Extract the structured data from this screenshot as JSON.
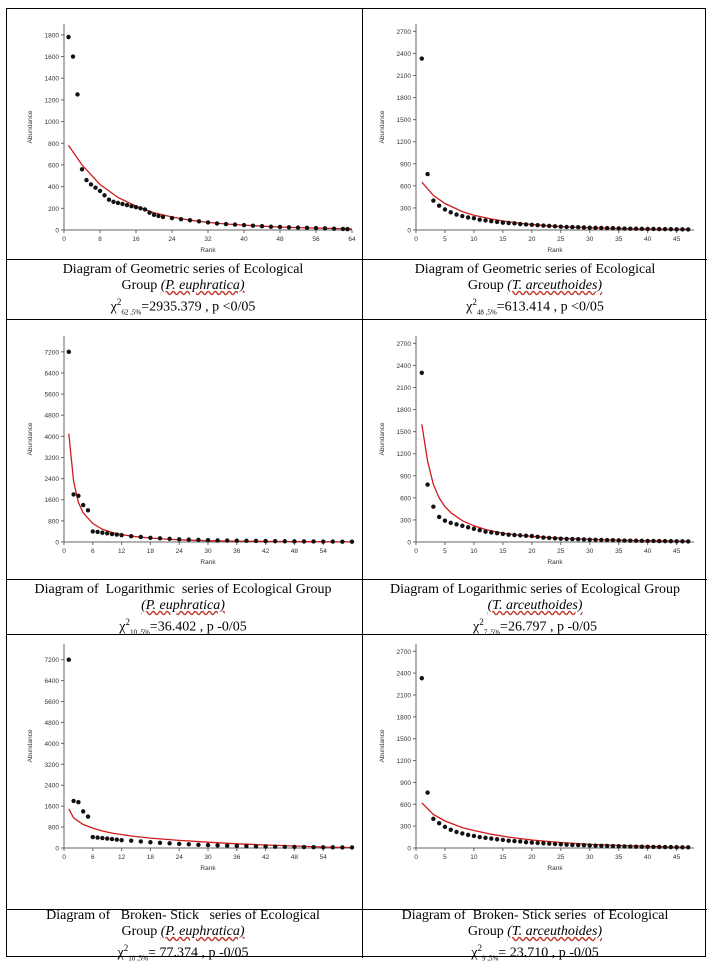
{
  "chart_data": [
    {
      "type": "scatter",
      "title_line1": "Diagram of Geometric series of Ecological",
      "title_line2_pre": "Group",
      "species": "(P. euphratica)",
      "stat_sym": "χ",
      "stat_sup": "2",
      "stat_sub": "62 ,5%",
      "stat_text": "=2935.379 , p <0/05",
      "xlabel": "Rank",
      "ylabel": "Abundance",
      "xticks": [
        0,
        8,
        16,
        24,
        32,
        40,
        48,
        56,
        64
      ],
      "yticks": [
        0,
        200,
        400,
        600,
        800,
        1000,
        1200,
        1400,
        1600,
        1800
      ],
      "xlim": [
        0,
        64
      ],
      "ylim": [
        0,
        1900
      ],
      "observed": {
        "x": [
          1,
          2,
          3,
          4,
          5,
          6,
          7,
          8,
          9,
          10,
          11,
          12,
          13,
          14,
          15,
          16,
          17,
          18,
          19,
          20,
          21,
          22,
          24,
          26,
          28,
          30,
          32,
          34,
          36,
          38,
          40,
          42,
          44,
          46,
          48,
          50,
          52,
          54,
          56,
          58,
          60,
          62,
          63
        ],
        "y": [
          1780,
          1600,
          1250,
          560,
          460,
          420,
          390,
          360,
          320,
          280,
          260,
          250,
          240,
          230,
          220,
          210,
          200,
          190,
          160,
          140,
          130,
          120,
          110,
          100,
          90,
          80,
          70,
          60,
          55,
          50,
          45,
          40,
          35,
          30,
          28,
          25,
          22,
          20,
          18,
          15,
          12,
          10,
          8
        ]
      },
      "fitted": {
        "x": [
          1,
          4,
          8,
          12,
          16,
          20,
          24,
          28,
          32,
          36,
          40,
          44,
          48,
          52,
          56,
          60,
          64
        ],
        "y": [
          780,
          600,
          420,
          300,
          220,
          160,
          120,
          90,
          70,
          55,
          45,
          35,
          28,
          22,
          18,
          14,
          10
        ]
      }
    },
    {
      "type": "scatter",
      "title_line1": "Diagram of Geometric series of Ecological",
      "title_line2_pre": "Group",
      "species": "(T. arceuthoides)",
      "stat_sym": "χ",
      "stat_sup": "2",
      "stat_sub": "48 ,5%",
      "stat_text": "=613.414 , p <0/05",
      "xlabel": "Rank",
      "ylabel": "Abundance",
      "xticks": [
        0,
        5,
        10,
        15,
        20,
        25,
        30,
        35,
        40,
        45
      ],
      "yticks": [
        0,
        300,
        600,
        900,
        1200,
        1500,
        1800,
        2100,
        2400,
        2700
      ],
      "xlim": [
        0,
        48
      ],
      "ylim": [
        0,
        2800
      ],
      "observed": {
        "x": [
          1,
          2,
          3,
          4,
          5,
          6,
          7,
          8,
          9,
          10,
          11,
          12,
          13,
          14,
          15,
          16,
          17,
          18,
          19,
          20,
          21,
          22,
          23,
          24,
          25,
          26,
          27,
          28,
          29,
          30,
          31,
          32,
          33,
          34,
          35,
          36,
          37,
          38,
          39,
          40,
          41,
          42,
          43,
          44,
          45,
          46,
          47
        ],
        "y": [
          2330,
          760,
          400,
          330,
          280,
          240,
          210,
          190,
          170,
          160,
          140,
          130,
          120,
          110,
          100,
          95,
          90,
          80,
          75,
          70,
          65,
          60,
          55,
          50,
          45,
          42,
          40,
          38,
          35,
          32,
          30,
          28,
          26,
          24,
          22,
          20,
          18,
          17,
          16,
          15,
          14,
          13,
          12,
          11,
          10,
          9,
          8
        ]
      },
      "fitted": {
        "x": [
          1,
          3,
          5,
          8,
          10,
          13,
          16,
          20,
          25,
          30,
          35,
          40,
          45,
          47
        ],
        "y": [
          650,
          470,
          360,
          250,
          200,
          150,
          110,
          75,
          45,
          30,
          20,
          14,
          10,
          9
        ]
      }
    },
    {
      "type": "scatter",
      "title_line1": "Diagram of  Logarithmic  series of Ecological Group",
      "title_line2_pre": "",
      "species": "(P. euphratica)",
      "stat_sym": "χ",
      "stat_sup": "2",
      "stat_sub": "10 ,5%",
      "stat_text": "=36.402 , p -0/05",
      "xlabel": "Rank",
      "ylabel": "Abundance",
      "xticks": [
        0,
        6,
        12,
        18,
        24,
        30,
        36,
        42,
        48,
        54
      ],
      "yticks": [
        0,
        800,
        1600,
        2400,
        3200,
        4000,
        4800,
        5600,
        6400,
        7200
      ],
      "xlim": [
        0,
        60
      ],
      "ylim": [
        0,
        7800
      ],
      "observed": {
        "x": [
          1,
          2,
          3,
          4,
          5,
          6,
          7,
          8,
          9,
          10,
          11,
          12,
          14,
          16,
          18,
          20,
          22,
          24,
          26,
          28,
          30,
          32,
          34,
          36,
          38,
          40,
          42,
          44,
          46,
          48,
          50,
          52,
          54,
          56,
          58,
          60
        ],
        "y": [
          7200,
          1800,
          1750,
          1400,
          1200,
          400,
          380,
          350,
          330,
          300,
          280,
          260,
          220,
          190,
          160,
          140,
          120,
          100,
          90,
          80,
          70,
          60,
          55,
          50,
          45,
          40,
          35,
          30,
          28,
          25,
          22,
          20,
          18,
          15,
          12,
          10
        ]
      },
      "fitted": {
        "x": [
          1,
          2,
          3,
          4,
          6,
          8,
          10,
          12,
          15,
          18,
          22,
          26,
          30,
          35,
          40,
          45,
          50,
          55,
          60
        ],
        "y": [
          4100,
          2300,
          1500,
          1100,
          700,
          480,
          360,
          280,
          200,
          150,
          100,
          70,
          50,
          35,
          25,
          18,
          12,
          8,
          5
        ]
      }
    },
    {
      "type": "scatter",
      "title_line1": "Diagram of Logarithmic series of Ecological Group",
      "title_line2_pre": "",
      "species": "(T. arceuthoides)",
      "stat_sym": "χ",
      "stat_sup": "2",
      "stat_sub": "7 ,5%",
      "stat_text": "=26.797 , p -0/05",
      "xlabel": "Rank",
      "ylabel": "Abundance",
      "xticks": [
        0,
        5,
        10,
        15,
        20,
        25,
        30,
        35,
        40,
        45
      ],
      "yticks": [
        0,
        300,
        600,
        900,
        1200,
        1500,
        1800,
        2100,
        2400,
        2700
      ],
      "xlim": [
        0,
        48
      ],
      "ylim": [
        0,
        2800
      ],
      "observed": {
        "x": [
          1,
          2,
          3,
          4,
          5,
          6,
          7,
          8,
          9,
          10,
          11,
          12,
          13,
          14,
          15,
          16,
          17,
          18,
          19,
          20,
          21,
          22,
          23,
          24,
          25,
          26,
          27,
          28,
          29,
          30,
          31,
          32,
          33,
          34,
          35,
          36,
          37,
          38,
          39,
          40,
          41,
          42,
          43,
          44,
          45,
          46,
          47
        ],
        "y": [
          2300,
          780,
          480,
          340,
          290,
          260,
          240,
          220,
          200,
          180,
          160,
          140,
          130,
          120,
          110,
          100,
          95,
          90,
          85,
          80,
          70,
          60,
          55,
          50,
          45,
          42,
          40,
          38,
          35,
          32,
          30,
          28,
          26,
          24,
          22,
          20,
          18,
          17,
          16,
          15,
          14,
          13,
          12,
          11,
          10,
          9,
          8
        ]
      },
      "fitted": {
        "x": [
          1,
          2,
          3,
          4,
          5,
          6,
          8,
          10,
          12,
          15,
          18,
          21,
          25,
          30,
          35,
          40,
          47
        ],
        "y": [
          1600,
          1100,
          780,
          600,
          480,
          400,
          290,
          220,
          170,
          120,
          90,
          70,
          50,
          35,
          25,
          18,
          10
        ]
      }
    },
    {
      "type": "scatter",
      "title_line1": "Diagram of   Broken- Stick   series of Ecological",
      "title_line2_pre": "Group",
      "species": "(P. euphratica)",
      "stat_sym": "χ",
      "stat_sup": "2",
      "stat_sub": "10 ,5%",
      "stat_text": "= 77.374 , p -0/05",
      "xlabel": "Rank",
      "ylabel": "Abundance",
      "xticks": [
        0,
        6,
        12,
        18,
        24,
        30,
        36,
        42,
        48,
        54
      ],
      "yticks": [
        0,
        800,
        1600,
        2400,
        3200,
        4000,
        4800,
        5600,
        6400,
        7200
      ],
      "xlim": [
        0,
        60
      ],
      "ylim": [
        0,
        7800
      ],
      "observed": {
        "x": [
          1,
          2,
          3,
          4,
          5,
          6,
          7,
          8,
          9,
          10,
          11,
          12,
          14,
          16,
          18,
          20,
          22,
          24,
          26,
          28,
          30,
          32,
          34,
          36,
          38,
          40,
          42,
          44,
          46,
          48,
          50,
          52,
          54,
          56,
          58,
          60
        ],
        "y": [
          7200,
          1800,
          1750,
          1400,
          1200,
          420,
          400,
          380,
          360,
          340,
          320,
          300,
          280,
          250,
          220,
          200,
          180,
          160,
          140,
          120,
          110,
          100,
          90,
          80,
          70,
          60,
          55,
          50,
          45,
          40,
          35,
          30,
          28,
          25,
          22,
          20
        ]
      },
      "fitted": {
        "x": [
          1,
          2,
          4,
          6,
          8,
          10,
          14,
          18,
          24,
          30,
          36,
          42,
          48,
          54,
          60
        ],
        "y": [
          1500,
          1150,
          900,
          760,
          650,
          570,
          460,
          380,
          290,
          220,
          160,
          115,
          75,
          40,
          10
        ]
      }
    },
    {
      "type": "scatter",
      "title_line1": "Diagram of  Broken- Stick series  of Ecological",
      "title_line2_pre": "Group",
      "species": "(T. arceuthoides)",
      "stat_sym": "χ",
      "stat_sup": "2",
      "stat_sub": "9 ,5%",
      "stat_text": "= 23.710 , p -0/05",
      "xlabel": "Rank",
      "ylabel": "Abundance",
      "xticks": [
        0,
        5,
        10,
        15,
        20,
        25,
        30,
        35,
        40,
        45
      ],
      "yticks": [
        0,
        300,
        600,
        900,
        1200,
        1500,
        1800,
        2100,
        2400,
        2700
      ],
      "xlim": [
        0,
        48
      ],
      "ylim": [
        0,
        2800
      ],
      "observed": {
        "x": [
          1,
          2,
          3,
          4,
          5,
          6,
          7,
          8,
          9,
          10,
          11,
          12,
          13,
          14,
          15,
          16,
          17,
          18,
          19,
          20,
          21,
          22,
          23,
          24,
          25,
          26,
          27,
          28,
          29,
          30,
          31,
          32,
          33,
          34,
          35,
          36,
          37,
          38,
          39,
          40,
          41,
          42,
          43,
          44,
          45,
          46,
          47
        ],
        "y": [
          2330,
          760,
          400,
          340,
          290,
          250,
          220,
          200,
          180,
          165,
          150,
          140,
          130,
          120,
          110,
          100,
          95,
          90,
          80,
          75,
          70,
          65,
          60,
          55,
          50,
          45,
          42,
          40,
          38,
          35,
          32,
          30,
          28,
          26,
          24,
          22,
          20,
          18,
          17,
          16,
          15,
          14,
          13,
          12,
          11,
          10,
          9
        ]
      },
      "fitted": {
        "x": [
          1,
          3,
          5,
          8,
          10,
          13,
          16,
          20,
          25,
          30,
          35,
          40,
          45,
          47
        ],
        "y": [
          620,
          460,
          370,
          280,
          240,
          190,
          150,
          110,
          75,
          50,
          35,
          22,
          12,
          8
        ]
      }
    }
  ]
}
